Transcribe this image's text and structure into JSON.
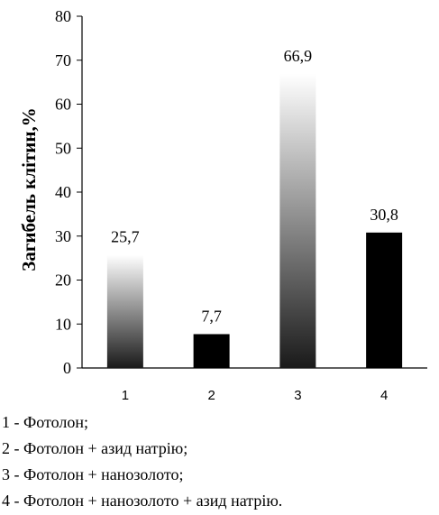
{
  "chart_data": {
    "type": "bar",
    "categories": [
      "1",
      "2",
      "3",
      "4"
    ],
    "values": [
      25.7,
      7.7,
      66.9,
      30.8
    ],
    "data_labels": [
      "25,7",
      "7,7",
      "66,9",
      "30,8"
    ],
    "ylabel": "Загибель клітин,%",
    "xlabel": "",
    "ylim": [
      0,
      80
    ],
    "yticks": [
      0,
      10,
      20,
      30,
      40,
      50,
      60,
      70,
      80
    ],
    "grid": false,
    "bar_styles": [
      "gradient",
      "solid",
      "gradient",
      "solid"
    ],
    "colors": {
      "solid": "#000000",
      "gradient_top": "#ffffff",
      "gradient_bottom": "#1a1a1a"
    }
  },
  "legend": [
    "1 - Фотолон;",
    "2 - Фотолон + азид натрію;",
    "3 - Фотолон + нанозолото;",
    "4 - Фотолон + нанозолото + азид натрію."
  ]
}
